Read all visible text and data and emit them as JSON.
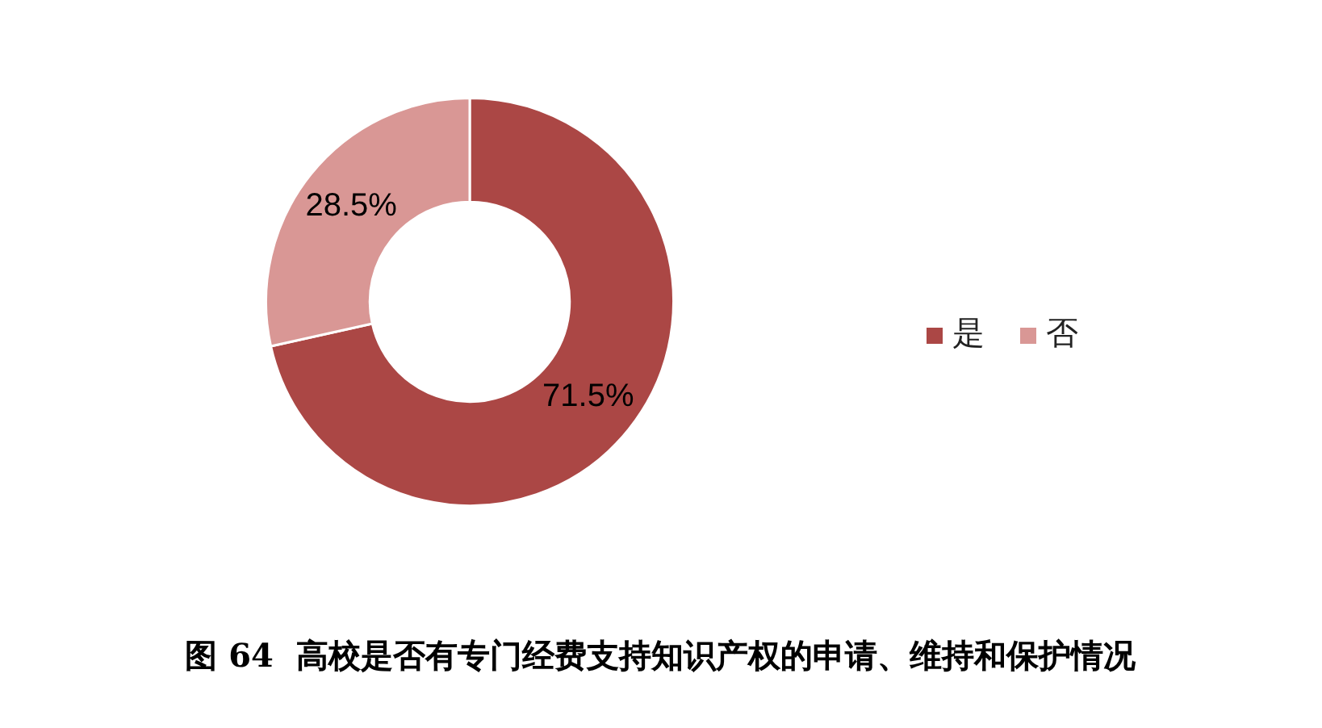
{
  "chart_data": {
    "type": "donut",
    "title": "图 64  高校是否有专门经费支持知识产权的申请、维持和保护情况",
    "categories": [
      "是",
      "否"
    ],
    "values": [
      71.5,
      28.5
    ],
    "colors": [
      "#ab4745",
      "#d99795"
    ],
    "value_labels": [
      "71.5%",
      "28.5%"
    ],
    "legend": "right"
  }
}
